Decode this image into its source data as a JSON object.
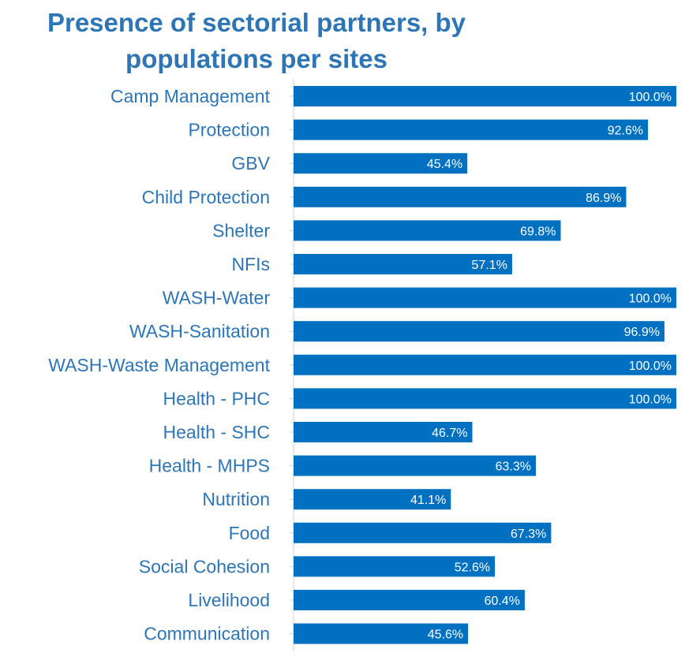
{
  "chart_data": {
    "type": "bar",
    "orientation": "horizontal",
    "title_lines": [
      "Presence of sectorial partners, by",
      "populations per sites"
    ],
    "categories": [
      "Camp Management",
      "Protection",
      "GBV",
      "Child Protection",
      "Shelter",
      "NFIs",
      "WASH-Water",
      "WASH-Sanitation",
      "WASH-Waste Management",
      "Health - PHC",
      "Health - SHC",
      "Health - MHPS",
      "Nutrition",
      "Food",
      "Social Cohesion",
      "Livelihood",
      "Communication"
    ],
    "values": [
      100.0,
      92.6,
      45.4,
      86.9,
      69.8,
      57.1,
      100.0,
      96.9,
      100.0,
      100.0,
      46.7,
      63.3,
      41.1,
      67.3,
      52.6,
      60.4,
      45.6
    ],
    "value_labels": [
      "100.0%",
      "92.6%",
      "45.4%",
      "86.9%",
      "69.8%",
      "57.1%",
      "100.0%",
      "96.9%",
      "100.0%",
      "100.0%",
      "46.7%",
      "63.3%",
      "41.1%",
      "67.3%",
      "52.6%",
      "60.4%",
      "45.6%"
    ],
    "xlim": [
      0,
      100
    ],
    "bar_color": "#0070c0",
    "label_color": "#2e75b6",
    "grid": false,
    "legend": "none"
  }
}
